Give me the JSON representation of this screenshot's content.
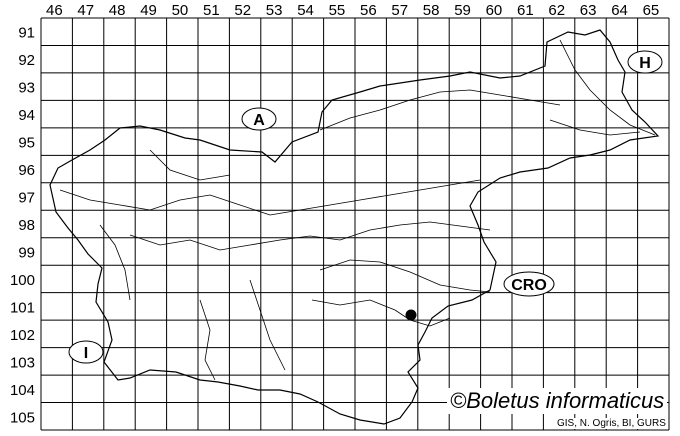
{
  "grid": {
    "columns": [
      "46",
      "47",
      "48",
      "49",
      "50",
      "51",
      "52",
      "53",
      "54",
      "55",
      "56",
      "57",
      "58",
      "59",
      "60",
      "61",
      "62",
      "63",
      "64",
      "65"
    ],
    "rows": [
      "91",
      "92",
      "93",
      "94",
      "95",
      "96",
      "97",
      "98",
      "99",
      "100",
      "101",
      "102",
      "103",
      "104",
      "105"
    ]
  },
  "countries": [
    {
      "code": "A"
    },
    {
      "code": "H"
    },
    {
      "code": "CRO"
    },
    {
      "code": "I"
    }
  ],
  "record_marker": {
    "column": "57",
    "row": "101",
    "color": "#000000"
  },
  "credit": "©Boletus informaticus",
  "source": "GIS, N. Ogris, BI, GURS"
}
